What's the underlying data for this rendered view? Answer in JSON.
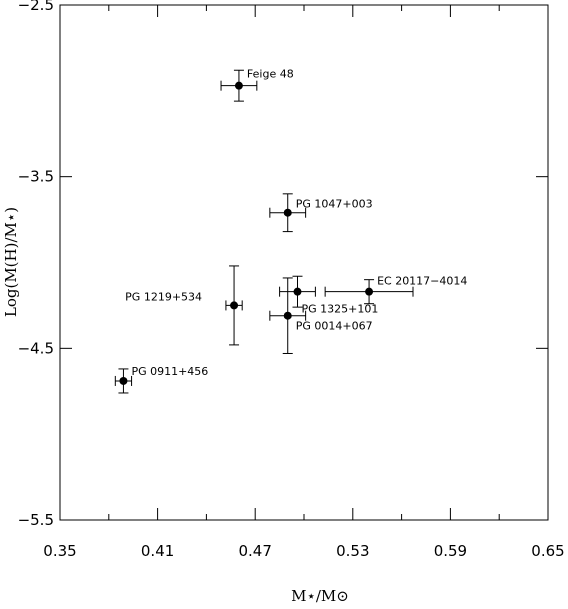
{
  "chart_data": {
    "type": "scatter",
    "title": "",
    "xlabel": "M⋆/M⊙",
    "ylabel": "Log(M(H)/M⋆)",
    "xlim": [
      0.35,
      0.65
    ],
    "ylim": [
      -5.5,
      -2.5
    ],
    "x_ticks": [
      "0.35",
      "0.41",
      "0.47",
      "0.53",
      "0.59",
      "0.65"
    ],
    "y_ticks": [
      "-2.5",
      "-3.5",
      "-4.5",
      "-5.5"
    ],
    "grid": false,
    "points": [
      {
        "label": "Feige 48",
        "x": 0.46,
        "y": -2.97,
        "xerr": 0.011,
        "yerr": 0.09
      },
      {
        "label": "PG 1047+003",
        "x": 0.49,
        "y": -3.71,
        "xerr": 0.011,
        "yerr": 0.11
      },
      {
        "label": "EC 20117−4014",
        "x": 0.54,
        "y": -4.17,
        "xerr": 0.027,
        "yerr": 0.07
      },
      {
        "label": "PG 1325+101",
        "x": 0.496,
        "y": -4.17,
        "xerr": 0.011,
        "yerr": 0.09
      },
      {
        "label": "PG 1219+534",
        "x": 0.457,
        "y": -4.25,
        "xerr": 0.005,
        "yerr": 0.23
      },
      {
        "label": "PG 0014+067",
        "x": 0.49,
        "y": -4.31,
        "xerr": 0.011,
        "yerr": 0.22
      },
      {
        "label": "PG 0911+456",
        "x": 0.389,
        "y": -4.69,
        "xerr": 0.005,
        "yerr": 0.07
      }
    ]
  }
}
